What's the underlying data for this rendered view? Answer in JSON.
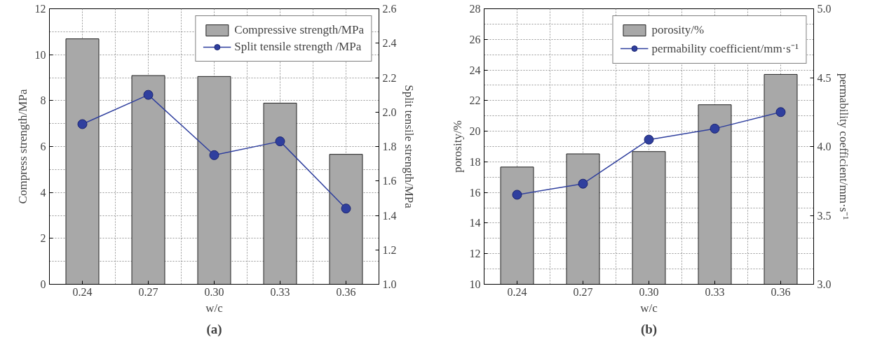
{
  "chart_data": [
    {
      "type": "bar",
      "title": "(a)",
      "xlabel": "w/c",
      "ylabel": "Compress strength/MPa",
      "y2label": "Split tensile strength/MPa",
      "categories": [
        "0.24",
        "0.27",
        "0.30",
        "0.33",
        "0.36"
      ],
      "series": [
        {
          "name": "Compressive strength/MPa",
          "color": "#a8a8a8",
          "values": [
            10.69,
            9.09,
            9.05,
            7.89,
            5.66
          ]
        },
        {
          "name": "Split tensile strength /MPa",
          "type": "line",
          "axis": "y2",
          "color": "#2f3f9e",
          "marker": "circle",
          "values": [
            1.93,
            2.1,
            1.75,
            1.83,
            1.44
          ]
        }
      ],
      "ylim": [
        0,
        12
      ],
      "yticks": [
        0,
        2,
        4,
        6,
        8,
        10,
        12
      ],
      "y2lim": [
        1.0,
        2.6
      ],
      "y2ticks": [
        {
          "value": 1.0,
          "label": "1.0"
        },
        1.2,
        1.4,
        1.6,
        1.8,
        {
          "value": 2.0,
          "label": "2.0"
        },
        2.2,
        2.4,
        2.6
      ],
      "grid": true,
      "legend": "top right"
    },
    {
      "type": "bar",
      "title": "(b)",
      "xlabel": "w/c",
      "ylabel": "porosity/%",
      "y2label": "permability coefficient/mm·s⁻¹",
      "categories": [
        "0.24",
        "0.27",
        "0.30",
        "0.33",
        "0.36"
      ],
      "series": [
        {
          "name": "porosity/%",
          "color": "#a8a8a8",
          "values": [
            17.66,
            18.52,
            18.67,
            21.73,
            23.71
          ]
        },
        {
          "name": "permability coefficient/mm·s⁻¹",
          "type": "line",
          "axis": "y2",
          "color": "#2f3f9e",
          "marker": "circle",
          "values": [
            3.65,
            3.73,
            4.05,
            4.13,
            4.25
          ]
        }
      ],
      "ylim": [
        10,
        28
      ],
      "yticks": [
        10,
        12,
        14,
        16,
        18,
        20,
        22,
        24,
        26,
        28
      ],
      "y2lim": [
        3.0,
        5.0
      ],
      "y2ticks": [
        {
          "value": 3.0,
          "label": "3.0"
        },
        3.5,
        {
          "value": 4.0,
          "label": "4.0"
        },
        4.5,
        {
          "value": 5.0,
          "label": "5.0"
        }
      ],
      "grid": true,
      "legend": "top right"
    }
  ]
}
